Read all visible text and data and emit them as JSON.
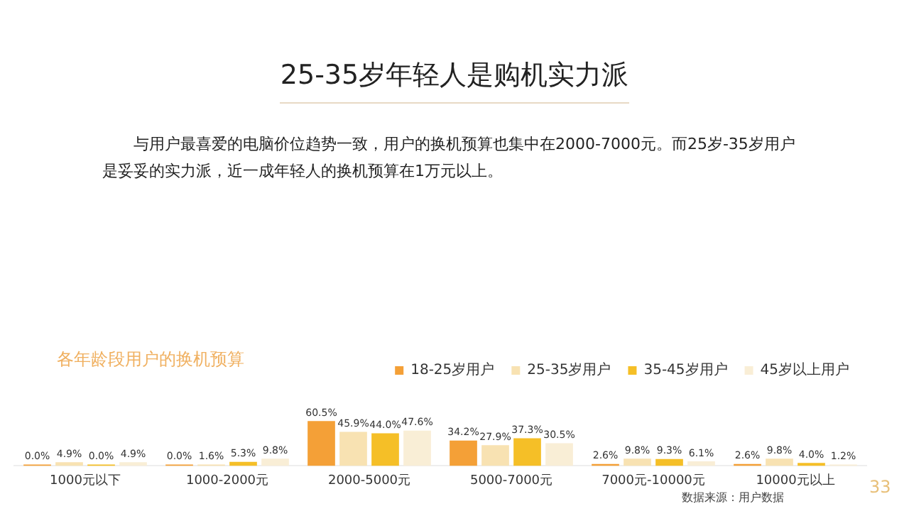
{
  "chart_data": {
    "type": "bar",
    "title": "25-35岁年轻人是购机实力派",
    "subtitle": "与用户最喜爱的电脑价位趋势一致，用户的换机预算也集中在2000-7000元。而25岁-35岁用户是妥妥的实力派，近一成年轻人的换机预算在1万元以上。",
    "legend_title": "各年龄段用户的换机预算",
    "categories": [
      "1000元以下",
      "1000-2000元",
      "2000-5000元",
      "5000-7000元",
      "7000元-10000元",
      "10000元以上"
    ],
    "series": [
      {
        "name": "18-25岁用户",
        "color": "#f4a037",
        "values": [
          0.0,
          0.0,
          60.5,
          34.2,
          2.6,
          2.6
        ],
        "value_labels": [
          "0.0%",
          "0.0%",
          "60.5%",
          "34.2%",
          "2.6%",
          "2.6%"
        ]
      },
      {
        "name": "25-35岁用户",
        "color": "#f8e2b2",
        "values": [
          4.9,
          1.6,
          45.9,
          27.9,
          9.8,
          9.8
        ],
        "value_labels": [
          "4.9%",
          "1.6%",
          "45.9%",
          "27.9%",
          "9.8%",
          "9.8%"
        ]
      },
      {
        "name": "35-45岁用户",
        "color": "#f5bf27",
        "values": [
          0.0,
          5.3,
          44.0,
          37.3,
          9.3,
          4.0
        ],
        "value_labels": [
          "0.0%",
          "5.3%",
          "44.0%",
          "37.3%",
          "9.3%",
          "4.0%"
        ]
      },
      {
        "name": "45岁以上用户",
        "color": "#f9eed6",
        "values": [
          4.9,
          9.8,
          47.6,
          30.5,
          6.1,
          1.2
        ],
        "value_labels": [
          "4.9%",
          "9.8%",
          "47.6%",
          "30.5%",
          "6.1%",
          "1.2%"
        ]
      }
    ],
    "legend": "top",
    "grid": false,
    "tick_labels": "x",
    "annotations": [
      "数据来源：用户数据",
      "33"
    ]
  }
}
